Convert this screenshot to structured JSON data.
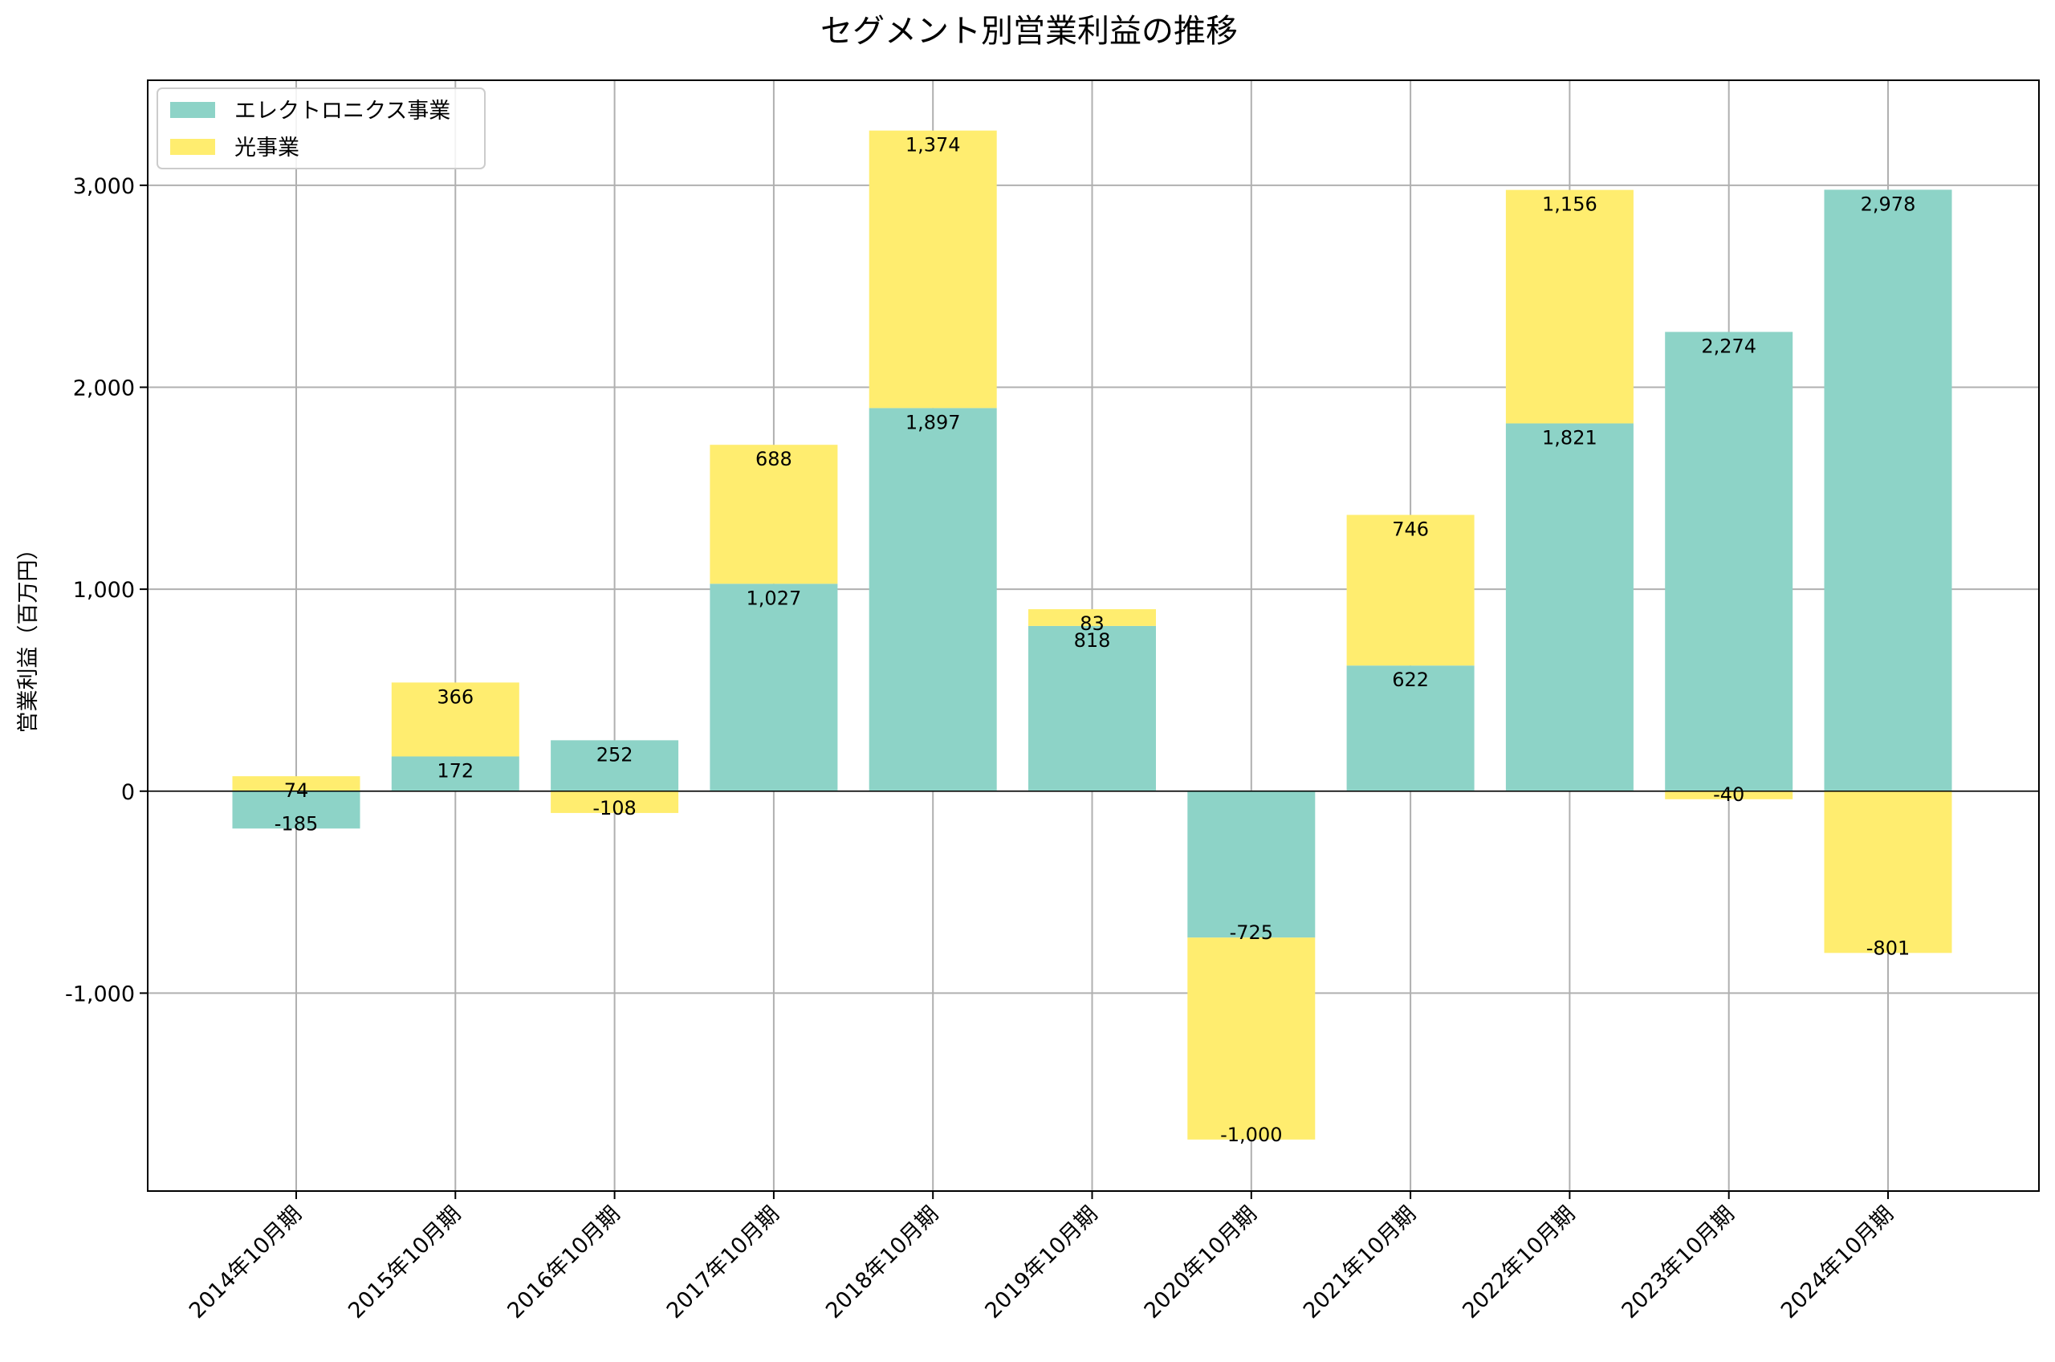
{
  "chart_data": {
    "type": "bar",
    "stacked": true,
    "title": "セグメント別営業利益の推移",
    "xlabel": "",
    "ylabel": "営業利益（百万円）",
    "ylim": [
      -1980,
      3520
    ],
    "yticks": [
      -1000,
      0,
      1000,
      2000,
      3000
    ],
    "ytick_labels": [
      "-1,000",
      "0",
      "1,000",
      "2,000",
      "3,000"
    ],
    "grid": true,
    "legend_position": "top-left",
    "categories": [
      "2014年10月期",
      "2015年10月期",
      "2016年10月期",
      "2017年10月期",
      "2018年10月期",
      "2019年10月期",
      "2020年10月期",
      "2021年10月期",
      "2022年10月期",
      "2023年10月期",
      "2024年10月期"
    ],
    "series": [
      {
        "name": "エレクトロニクス事業",
        "color": "#8dd3c7",
        "values": [
          -185,
          172,
          252,
          1027,
          1897,
          818,
          -725,
          622,
          1821,
          2274,
          2978
        ],
        "labels": [
          "-185",
          "172",
          "252",
          "1,027",
          "1,897",
          "818",
          "-725",
          "622",
          "1,821",
          "2,274",
          "2,978"
        ]
      },
      {
        "name": "光事業",
        "color": "#ffed6f",
        "values": [
          74,
          366,
          -108,
          688,
          1374,
          83,
          -1000,
          746,
          1156,
          -40,
          -801
        ],
        "labels": [
          "74",
          "366",
          "-108",
          "688",
          "1,374",
          "83",
          "-1,000",
          "746",
          "1,156",
          "-40",
          "-801"
        ]
      }
    ]
  }
}
